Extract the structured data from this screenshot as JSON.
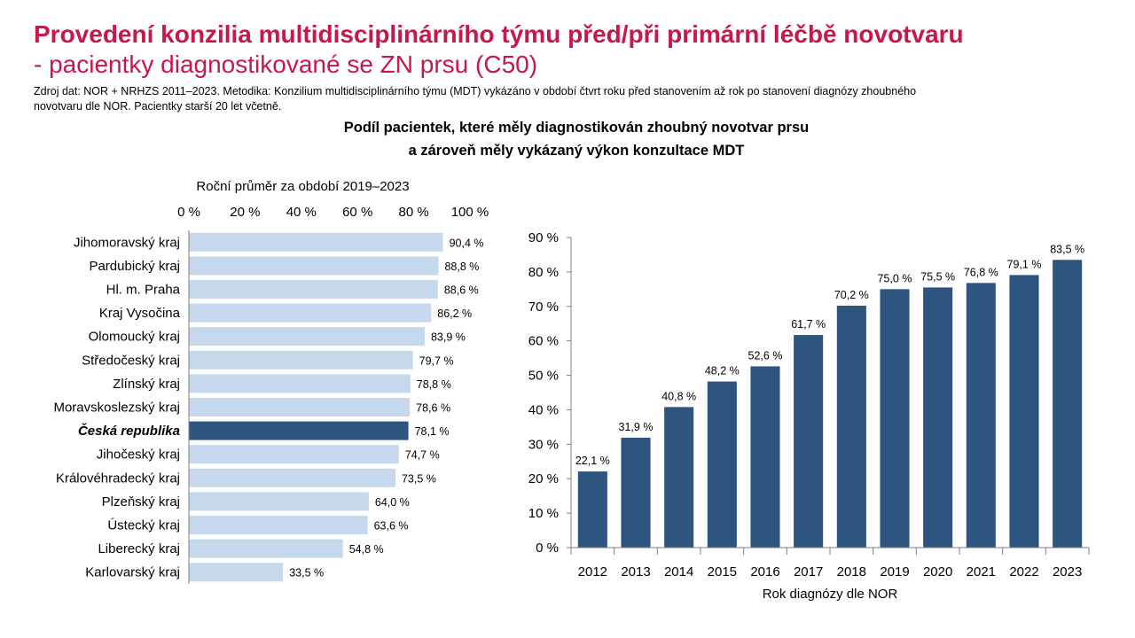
{
  "header": {
    "title_line1": "Provedení konzilia multidisciplinárního týmu před/při primární léčbě novotvaru",
    "title_line2": "- pacientky diagnostikované se ZN prsu (C50)",
    "source_line1": "Zdroj dat: NOR + NRHZS 2011–2023. Metodika: Konzilium multidisciplinárního týmu (MDT) vykázáno v období čtvrt roku před stanovením až rok po stanovení diagnózy zhoubného",
    "source_line2": "novotvaru dle NOR. Pacientky starší 20 let včetně.",
    "subtitle_line1": "Podíl pacientek, které měly diagnostikován zhoubný novotvar prsu",
    "subtitle_line2": "a zároveň měly vykázaný výkon konzultace MDT"
  },
  "colors": {
    "title": "#c8174b",
    "bar_light": "#c5d8ec",
    "bar_dark": "#2e5580"
  },
  "chart_data": [
    {
      "type": "bar",
      "orientation": "horizontal",
      "title": "Roční průměr za období 2019–2023",
      "xlim": [
        0,
        100
      ],
      "ticks": [
        "0 %",
        "20 %",
        "40 %",
        "60 %",
        "80 %",
        "100 %"
      ],
      "categories": [
        "Jihomoravský kraj",
        "Pardubický kraj",
        "Hl. m. Praha",
        "Kraj Vysočina",
        "Olomoucký kraj",
        "Středočeský kraj",
        "Zlínský kraj",
        "Moravskoslezský kraj",
        "Česká republika",
        "Jihočeský kraj",
        "Královéhradecký kraj",
        "Plzeňský kraj",
        "Ústecký kraj",
        "Liberecký kraj",
        "Karlovarský kraj"
      ],
      "values": [
        90.4,
        88.8,
        88.6,
        86.2,
        83.9,
        79.7,
        78.8,
        78.6,
        78.1,
        74.7,
        73.5,
        64.0,
        63.6,
        54.8,
        33.5
      ],
      "labels": [
        "90,4 %",
        "88,8 %",
        "88,6 %",
        "86,2 %",
        "83,9 %",
        "79,7 %",
        "78,8 %",
        "78,6 %",
        "78,1 %",
        "74,7 %",
        "73,5 %",
        "64,0 %",
        "63,6 %",
        "54,8 %",
        "33,5 %"
      ],
      "highlight": "Česká republika"
    },
    {
      "type": "bar",
      "orientation": "vertical",
      "xlabel": "Rok diagnózy dle NOR",
      "ylim": [
        0,
        90
      ],
      "ticks": [
        "0 %",
        "10 %",
        "20 %",
        "30 %",
        "40 %",
        "50 %",
        "60 %",
        "70 %",
        "80 %",
        "90 %"
      ],
      "categories": [
        "2012",
        "2013",
        "2014",
        "2015",
        "2016",
        "2017",
        "2018",
        "2019",
        "2020",
        "2021",
        "2022",
        "2023"
      ],
      "values": [
        22.1,
        31.9,
        40.8,
        48.2,
        52.6,
        61.7,
        70.2,
        75.0,
        75.5,
        76.8,
        79.1,
        83.5
      ],
      "labels": [
        "22,1 %",
        "31,9 %",
        "40,8 %",
        "48,2 %",
        "52,6 %",
        "61,7 %",
        "70,2 %",
        "75,0 %",
        "75,5 %",
        "76,8 %",
        "79,1 %",
        "83,5 %"
      ]
    }
  ]
}
